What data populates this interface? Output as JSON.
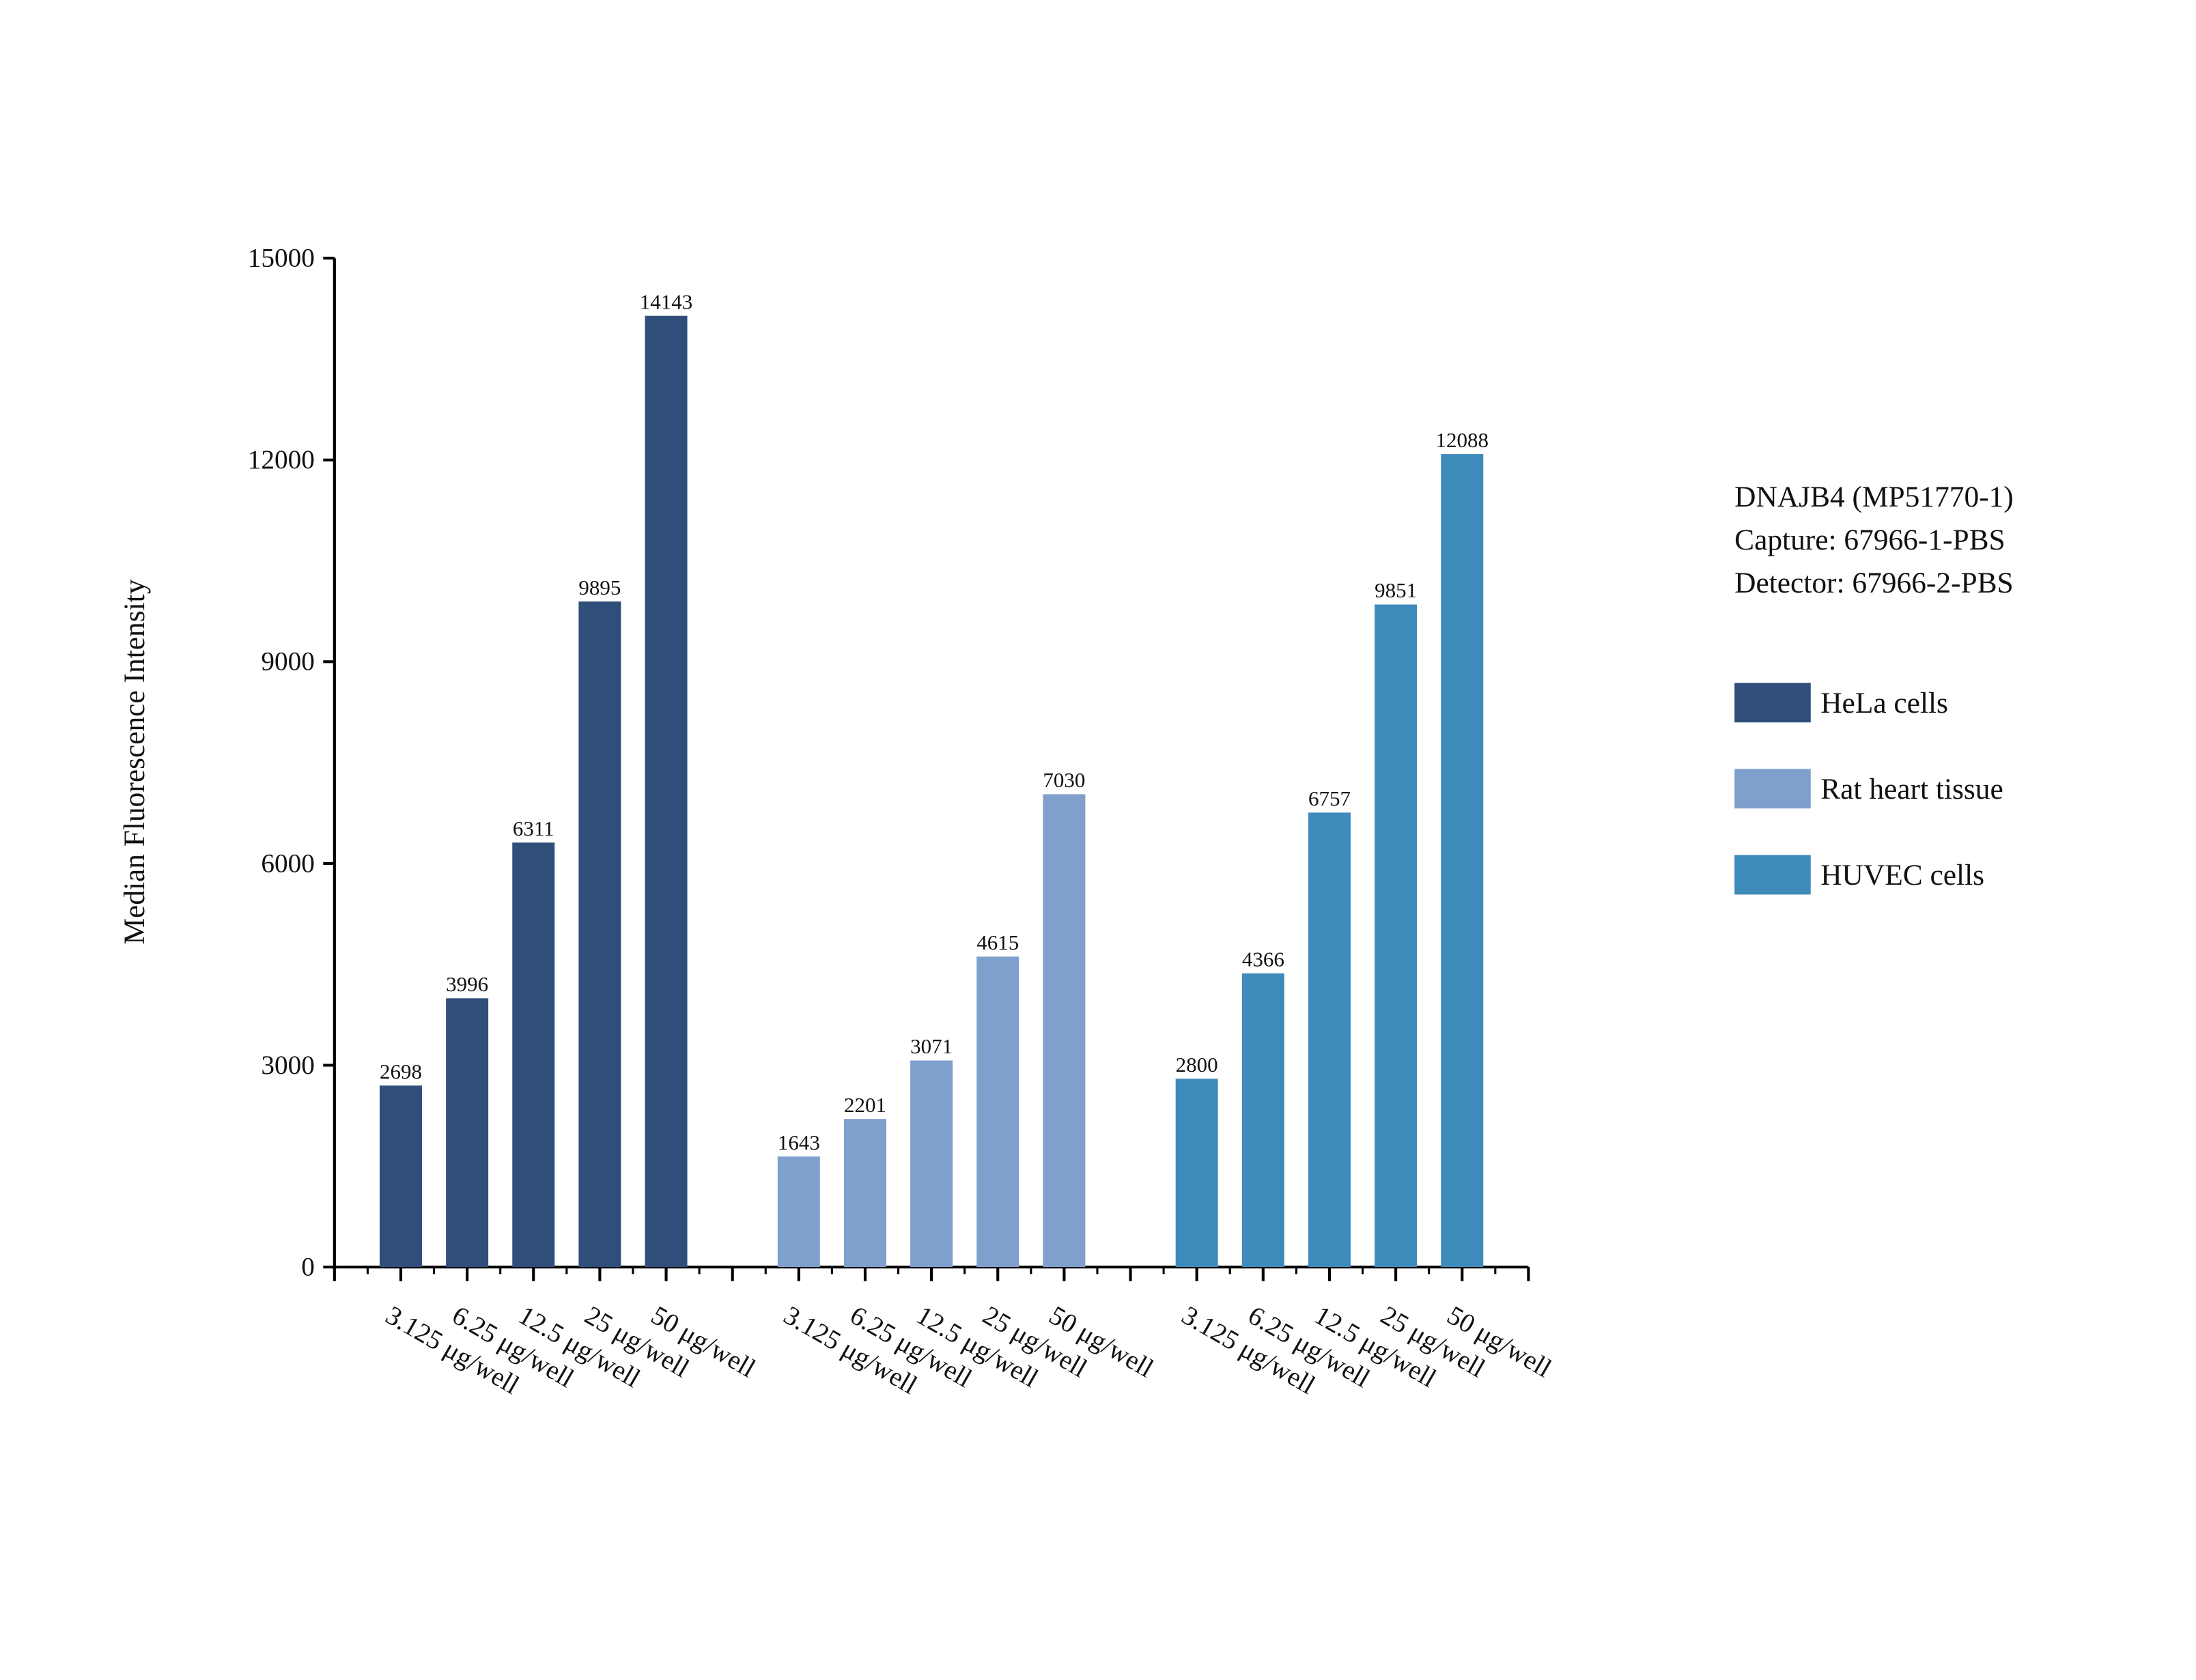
{
  "chart_data": {
    "type": "bar",
    "y_label": "Median Fluorescence Intensity",
    "annotation": [
      "DNAJB4 (MP51770-1)",
      "Capture: 67966-1-PBS",
      "Detector: 67966-2-PBS"
    ],
    "categories": [
      "3.125 μg/well",
      "6.25 μg/well",
      "12.5 μg/well",
      "25 μg/well",
      "50 μg/well",
      null,
      "3.125 μg/well",
      "6.25 μg/well",
      "12.5 μg/well",
      "25 μg/well",
      "50 μg/well",
      null,
      "3.125 μg/well",
      "6.25 μg/well",
      "12.5 μg/well",
      "25 μg/well",
      "50 μg/well"
    ],
    "series": [
      {
        "name": "HeLa cells",
        "color": "#2f4f7a",
        "values": [
          2698,
          3996,
          6311,
          9895,
          14143,
          null,
          null,
          null,
          null,
          null,
          null,
          null,
          null,
          null,
          null,
          null,
          null
        ]
      },
      {
        "name": "Rat heart tissue",
        "color": "#7f9fcc",
        "values": [
          null,
          null,
          null,
          null,
          null,
          null,
          1643,
          2201,
          3071,
          4615,
          7030,
          null,
          null,
          null,
          null,
          null,
          null
        ]
      },
      {
        "name": "HUVEC cells",
        "color": "#3e8aba",
        "values": [
          null,
          null,
          null,
          null,
          null,
          null,
          null,
          null,
          null,
          null,
          null,
          null,
          2800,
          4366,
          6757,
          9851,
          12088
        ]
      }
    ],
    "ylim": [
      0,
      15000
    ],
    "yticks": [
      0,
      3000,
      6000,
      9000,
      12000,
      15000
    ],
    "legend": "right"
  }
}
